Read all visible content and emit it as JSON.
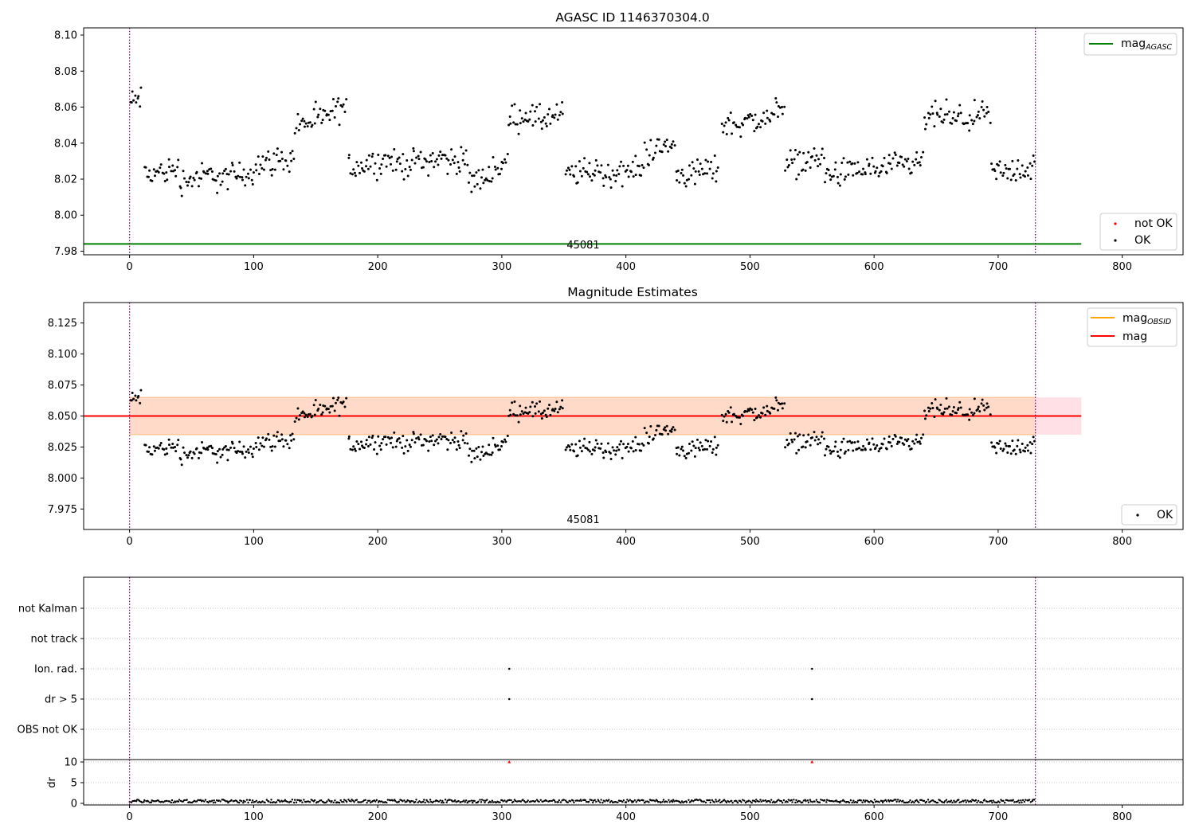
{
  "chart_data": [
    {
      "type": "scatter",
      "title": "AGASC ID 1146370304.0",
      "annotation": "45081",
      "xlim": [
        -37,
        849
      ],
      "ylim": [
        7.978,
        8.104
      ],
      "xticks": [
        0,
        100,
        200,
        300,
        400,
        500,
        600,
        700,
        800
      ],
      "yticks": [
        7.98,
        8.0,
        8.02,
        8.04,
        8.06,
        8.08,
        8.1
      ],
      "ytick_labels": [
        "7.98",
        "8.00",
        "8.02",
        "8.04",
        "8.06",
        "8.08",
        "8.10"
      ],
      "grid": false,
      "vlines": [
        0,
        730
      ],
      "hline": {
        "name": "mag_AGASC",
        "y": 7.984,
        "x_range": [
          -37,
          767
        ],
        "color": "#008000"
      },
      "legends": [
        {
          "placement": "top-right",
          "entries": [
            {
              "label": "mag",
              "sub": "AGASC",
              "kind": "line",
              "color": "#008000"
            }
          ]
        },
        {
          "placement": "bottom-right",
          "entries": [
            {
              "label": "not OK",
              "kind": "dot",
              "color": "#ff0000"
            },
            {
              "label": "OK",
              "kind": "dot",
              "color": "#000000"
            }
          ]
        }
      ],
      "series": [
        {
          "name": "OK",
          "color": "#000000",
          "segments": [
            [
              0,
              10,
              8.064
            ],
            [
              12,
              40,
              8.024
            ],
            [
              40,
              70,
              8.021
            ],
            [
              70,
              100,
              8.022
            ],
            [
              100,
              133,
              8.03
            ],
            [
              133,
              160,
              8.052
            ],
            [
              160,
              175,
              8.058
            ],
            [
              176,
              213,
              8.029
            ],
            [
              213,
              255,
              8.03
            ],
            [
              255,
              272,
              8.031
            ],
            [
              272,
              290,
              8.02
            ],
            [
              290,
              305,
              8.027
            ],
            [
              305,
              325,
              8.055
            ],
            [
              325,
              350,
              8.054
            ],
            [
              351,
              380,
              8.024
            ],
            [
              380,
              415,
              8.024
            ],
            [
              415,
              440,
              8.037
            ],
            [
              440,
              475,
              8.024
            ],
            [
              477,
              520,
              8.052
            ],
            [
              520,
              528,
              8.062
            ],
            [
              528,
              560,
              8.03
            ],
            [
              560,
              600,
              8.024
            ],
            [
              600,
              640,
              8.027
            ],
            [
              640,
              660,
              8.055
            ],
            [
              660,
              694,
              8.054
            ],
            [
              694,
              730,
              8.025
            ]
          ]
        },
        {
          "name": "not OK",
          "color": "#ff0000",
          "segments": []
        }
      ]
    },
    {
      "type": "scatter",
      "title": "Magnitude Estimates",
      "annotation": "45081",
      "xlim": [
        -37,
        849
      ],
      "ylim": [
        7.9585,
        8.1415
      ],
      "xticks": [
        0,
        100,
        200,
        300,
        400,
        500,
        600,
        700,
        800
      ],
      "yticks": [
        7.975,
        8.0,
        8.025,
        8.05,
        8.075,
        8.1,
        8.125
      ],
      "ytick_labels": [
        "7.975",
        "8.000",
        "8.025",
        "8.050",
        "8.075",
        "8.100",
        "8.125"
      ],
      "grid": false,
      "vlines": [
        0,
        730
      ],
      "mag": 8.05,
      "mag_range": [
        8.035,
        8.065
      ],
      "bands": [
        {
          "x_range": [
            0,
            730
          ],
          "y_range": [
            8.035,
            8.065
          ],
          "color": "#ffdac8"
        },
        {
          "x_range": [
            730,
            767
          ],
          "y_range": [
            8.035,
            8.065
          ],
          "color": "#ffe0e6"
        }
      ],
      "legends": [
        {
          "placement": "top-right",
          "entries": [
            {
              "label": "mag",
              "sub": "OBSID",
              "kind": "line",
              "color": "#ffa500"
            },
            {
              "label": "mag",
              "sub": "",
              "kind": "line",
              "color": "#ff0000"
            }
          ]
        },
        {
          "placement": "bottom-right",
          "entries": [
            {
              "label": "OK",
              "kind": "dot",
              "color": "#000000"
            }
          ]
        }
      ]
    },
    {
      "type": "scatter",
      "title": "",
      "xlim": [
        -37,
        849
      ],
      "flag_categories": [
        "OBS not OK",
        "dr > 5",
        "Ion. rad.",
        "not track",
        "not Kalman"
      ],
      "flag_points": [
        {
          "category": "Ion. rad.",
          "x": 306
        },
        {
          "category": "Ion. rad.",
          "x": 550
        },
        {
          "category": "dr > 5",
          "x": 306
        },
        {
          "category": "dr > 5",
          "x": 550
        }
      ],
      "vlines": [
        0,
        730
      ],
      "grid": true
    },
    {
      "type": "scatter",
      "title": "",
      "xlabel": "",
      "ylabel": "dr",
      "xlim": [
        -37,
        849
      ],
      "ylim": [
        -1,
        10.5
      ],
      "xticks": [
        0,
        100,
        200,
        300,
        400,
        500,
        600,
        700,
        800
      ],
      "yticks": [
        0,
        5,
        10
      ],
      "grid": true,
      "vlines": [
        0,
        730
      ],
      "dr_typical": 0.5,
      "clipped_points": [
        {
          "x": 306,
          "y": 10
        },
        {
          "x": 550,
          "y": 10
        }
      ]
    }
  ]
}
